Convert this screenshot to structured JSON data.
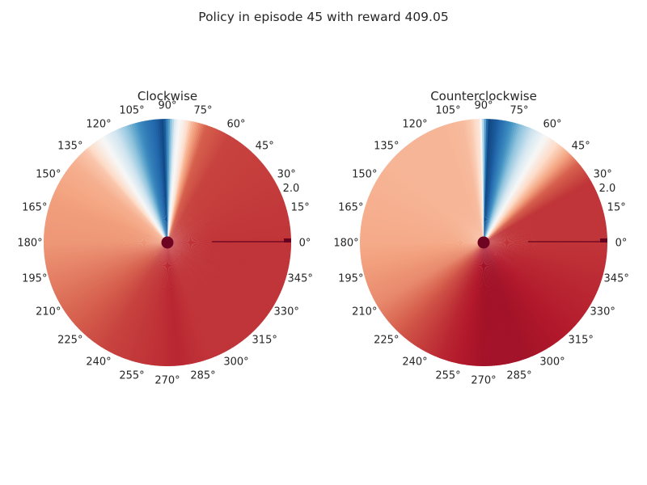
{
  "figure": {
    "title": "Policy in episode 45 with reward 409.05"
  },
  "chart_data": [
    {
      "type": "heatmap",
      "projection": "polar",
      "title": "Clockwise",
      "colormap": "RdBu_r",
      "angular_ticks": [
        "0°",
        "15°",
        "30°",
        "45°",
        "60°",
        "75°",
        "90°",
        "105°",
        "120°",
        "135°",
        "150°",
        "165°",
        "180°",
        "195°",
        "210°",
        "225°",
        "240°",
        "255°",
        "270°",
        "285°",
        "300°",
        "315°",
        "330°",
        "345°"
      ],
      "radial_ticks": [
        "2.0"
      ],
      "angle_profile": {
        "angles_deg": [
          0,
          60,
          72,
          78,
          82,
          86,
          92,
          96,
          102,
          108,
          114,
          120,
          126,
          132,
          140,
          160,
          180,
          200,
          220,
          240,
          260,
          275,
          290,
          320,
          360
        ],
        "values": [
          0.86,
          0.84,
          0.8,
          0.68,
          0.55,
          0.47,
          0.04,
          0.1,
          0.16,
          0.27,
          0.38,
          0.47,
          0.55,
          0.64,
          0.68,
          0.71,
          0.72,
          0.76,
          0.8,
          0.84,
          0.86,
          0.88,
          0.86,
          0.86,
          0.86
        ]
      },
      "grid": false
    },
    {
      "type": "heatmap",
      "projection": "polar",
      "title": "Counterclockwise",
      "colormap": "RdBu_r",
      "angular_ticks": [
        "0°",
        "15°",
        "30°",
        "45°",
        "60°",
        "75°",
        "90°",
        "105°",
        "120°",
        "135°",
        "150°",
        "165°",
        "180°",
        "195°",
        "210°",
        "225°",
        "240°",
        "255°",
        "270°",
        "285°",
        "300°",
        "315°",
        "330°",
        "345°"
      ],
      "radial_ticks": [
        "2.0"
      ],
      "angle_profile": {
        "angles_deg": [
          0,
          30,
          40,
          48,
          56,
          64,
          72,
          78,
          84,
          88,
          92,
          96,
          100,
          110,
          140,
          180,
          210,
          230,
          250,
          270,
          290,
          320,
          360
        ],
        "values": [
          0.86,
          0.86,
          0.8,
          0.68,
          0.56,
          0.44,
          0.3,
          0.18,
          0.08,
          0.04,
          0.56,
          0.63,
          0.66,
          0.67,
          0.67,
          0.69,
          0.74,
          0.82,
          0.88,
          0.92,
          0.92,
          0.89,
          0.86
        ]
      },
      "grid": false
    }
  ]
}
